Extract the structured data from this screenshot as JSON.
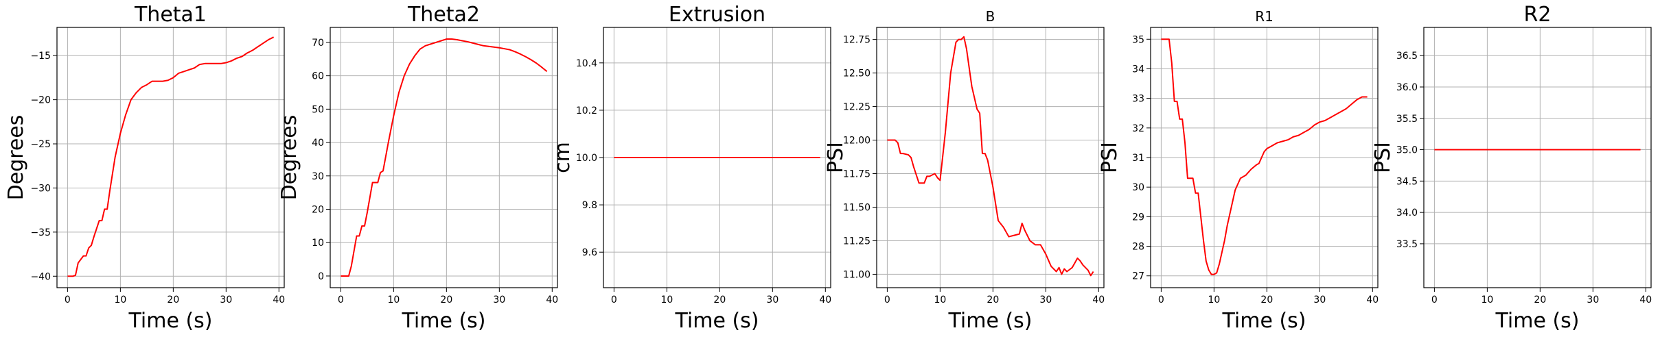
{
  "figure": {
    "background": "#ffffff",
    "line_color": "#ff0000",
    "grid_color": "#b0b0b0"
  },
  "chart_data": [
    {
      "type": "line",
      "title": "Theta1",
      "xlabel": "Time (s)",
      "ylabel": "Degrees",
      "xlim": [
        -2,
        41
      ],
      "ylim": [
        -41.3,
        -11.8
      ],
      "xticks": [
        0,
        10,
        20,
        30,
        40
      ],
      "xtick_labels": [
        "0",
        "10",
        "20",
        "30",
        "40"
      ],
      "yticks": [
        -40,
        -35,
        -30,
        -25,
        -20,
        -15
      ],
      "ytick_labels": [
        "−40",
        "−35",
        "−30",
        "−25",
        "−20",
        "−15"
      ],
      "grid": true,
      "series": [
        {
          "color": "#ff0000",
          "x": [
            0,
            1,
            1.5,
            2,
            3,
            3.5,
            4,
            4.5,
            5,
            6,
            6.5,
            7,
            7.5,
            8,
            9,
            10,
            11,
            12,
            13,
            14,
            15,
            16,
            17,
            18,
            19,
            20,
            21,
            22,
            23,
            24,
            25,
            26,
            27,
            28,
            29,
            30,
            31,
            32,
            33,
            34,
            35,
            36,
            37,
            38,
            39
          ],
          "y": [
            -40,
            -40,
            -39.9,
            -38.5,
            -37.7,
            -37.7,
            -36.8,
            -36.5,
            -35.5,
            -33.7,
            -33.7,
            -32.4,
            -32.4,
            -30.3,
            -26.5,
            -23.8,
            -21.7,
            -20,
            -19.2,
            -18.6,
            -18.3,
            -17.9,
            -17.9,
            -17.9,
            -17.8,
            -17.5,
            -17,
            -16.8,
            -16.6,
            -16.4,
            -16,
            -15.9,
            -15.9,
            -15.9,
            -15.9,
            -15.8,
            -15.6,
            -15.3,
            -15.1,
            -14.7,
            -14.4,
            -14,
            -13.6,
            -13.2,
            -12.9
          ]
        }
      ]
    },
    {
      "type": "line",
      "title": "Theta2",
      "xlabel": "Time (s)",
      "ylabel": "Degrees",
      "xlim": [
        -2,
        41
      ],
      "ylim": [
        -3.5,
        74.5
      ],
      "xticks": [
        0,
        10,
        20,
        30,
        40
      ],
      "xtick_labels": [
        "0",
        "10",
        "20",
        "30",
        "40"
      ],
      "yticks": [
        0,
        10,
        20,
        30,
        40,
        50,
        60,
        70
      ],
      "ytick_labels": [
        "0",
        "10",
        "20",
        "30",
        "40",
        "50",
        "60",
        "70"
      ],
      "grid": true,
      "series": [
        {
          "color": "#ff0000",
          "x": [
            0,
            1,
            1.5,
            2,
            3,
            3.5,
            4,
            4.5,
            5,
            6,
            6.5,
            7,
            7.5,
            8,
            9,
            10,
            11,
            12,
            13,
            14,
            15,
            16,
            17,
            18,
            19,
            20,
            21,
            22,
            23,
            24,
            25,
            26,
            27,
            28,
            29,
            30,
            31,
            32,
            33,
            34,
            35,
            36,
            37,
            38,
            39
          ],
          "y": [
            0,
            0,
            0,
            3,
            12,
            12,
            15,
            15,
            19,
            28,
            28,
            28,
            31,
            31.5,
            40,
            48,
            55,
            60,
            63.5,
            66,
            68,
            69,
            69.5,
            70,
            70.5,
            71,
            71,
            70.8,
            70.5,
            70.2,
            69.8,
            69.4,
            69,
            68.8,
            68.6,
            68.4,
            68.1,
            67.8,
            67.2,
            66.5,
            65.7,
            64.8,
            63.8,
            62.6,
            61.3
          ]
        }
      ]
    },
    {
      "type": "line",
      "title": "Extrusion",
      "xlabel": "Time (s)",
      "ylabel": "cm",
      "xlim": [
        -2,
        41
      ],
      "ylim": [
        9.45,
        10.55
      ],
      "xticks": [
        0,
        10,
        20,
        30,
        40
      ],
      "xtick_labels": [
        "0",
        "10",
        "20",
        "30",
        "40"
      ],
      "yticks": [
        9.6,
        9.8,
        10,
        10.2,
        10.4
      ],
      "ytick_labels": [
        "9.6",
        "9.8",
        "10.0",
        "10.2",
        "10.4"
      ],
      "grid": true,
      "series": [
        {
          "color": "#ff0000",
          "x": [
            0,
            39
          ],
          "y": [
            10,
            10
          ]
        }
      ]
    },
    {
      "type": "line",
      "title": "B",
      "xlabel": "Time (s)",
      "ylabel": "PSI",
      "xlim": [
        -2,
        41
      ],
      "ylim": [
        10.9,
        12.84
      ],
      "xticks": [
        0,
        10,
        20,
        30,
        40
      ],
      "xtick_labels": [
        "0",
        "10",
        "20",
        "30",
        "40"
      ],
      "yticks": [
        11,
        11.25,
        11.5,
        11.75,
        12,
        12.25,
        12.5,
        12.75
      ],
      "ytick_labels": [
        "11.00",
        "11.25",
        "11.50",
        "11.75",
        "12.00",
        "12.25",
        "12.50",
        "12.75"
      ],
      "grid": true,
      "series": [
        {
          "color": "#ff0000",
          "x": [
            0,
            1,
            1.5,
            2,
            2.5,
            3,
            4,
            4.5,
            5,
            6,
            6.5,
            7,
            7.5,
            8,
            9,
            9.5,
            10,
            11,
            12,
            13,
            13.5,
            14,
            14.5,
            15,
            16,
            17,
            17.5,
            18,
            18.5,
            19,
            20,
            21,
            22,
            23,
            24,
            25,
            25.5,
            26,
            27,
            28,
            29,
            30,
            31,
            32,
            32.5,
            33,
            33.5,
            34,
            35,
            36,
            36.5,
            37,
            38,
            38.5,
            39
          ],
          "y": [
            12,
            12,
            12,
            11.98,
            11.9,
            11.9,
            11.89,
            11.87,
            11.8,
            11.68,
            11.68,
            11.68,
            11.73,
            11.73,
            11.75,
            11.72,
            11.7,
            12.06,
            12.5,
            12.73,
            12.75,
            12.75,
            12.77,
            12.68,
            12.4,
            12.23,
            12.2,
            11.9,
            11.9,
            11.85,
            11.65,
            11.4,
            11.35,
            11.28,
            11.29,
            11.3,
            11.38,
            11.33,
            11.25,
            11.22,
            11.22,
            11.15,
            11.06,
            11.02,
            11.05,
            11,
            11.04,
            11.02,
            11.05,
            11.12,
            11.1,
            11.07,
            11.03,
            10.99,
            11.02
          ]
        }
      ]
    },
    {
      "type": "line",
      "title": "R1",
      "xlabel": "Time (s)",
      "ylabel": "PSI",
      "xlim": [
        -2,
        41
      ],
      "ylim": [
        26.6,
        35.4
      ],
      "xticks": [
        0,
        10,
        20,
        30,
        40
      ],
      "xtick_labels": [
        "0",
        "10",
        "20",
        "30",
        "40"
      ],
      "yticks": [
        27,
        28,
        29,
        30,
        31,
        32,
        33,
        34,
        35
      ],
      "ytick_labels": [
        "27",
        "28",
        "29",
        "30",
        "31",
        "32",
        "33",
        "34",
        "35"
      ],
      "grid": true,
      "series": [
        {
          "color": "#ff0000",
          "x": [
            0,
            1,
            1.5,
            2,
            2.5,
            3,
            3.5,
            4,
            4.5,
            5,
            5.5,
            6,
            6.5,
            7,
            7.5,
            8,
            8.5,
            9,
            9.5,
            10,
            10.5,
            11,
            11.5,
            12,
            12.5,
            13,
            13.5,
            14,
            15,
            16,
            17,
            18,
            18.5,
            19,
            19.5,
            20,
            21,
            22,
            23,
            24,
            25,
            26,
            27,
            28,
            29,
            30,
            31,
            32,
            33,
            34,
            35,
            36,
            37,
            38,
            39
          ],
          "y": [
            35,
            35,
            35,
            34.2,
            32.9,
            32.9,
            32.3,
            32.3,
            31.5,
            30.3,
            30.3,
            30.3,
            29.8,
            29.8,
            29,
            28.2,
            27.5,
            27.2,
            27.05,
            27.05,
            27.1,
            27.4,
            27.8,
            28.2,
            28.7,
            29.1,
            29.5,
            29.9,
            30.3,
            30.4,
            30.6,
            30.75,
            30.8,
            31,
            31.2,
            31.3,
            31.4,
            31.5,
            31.55,
            31.6,
            31.7,
            31.75,
            31.85,
            31.95,
            32.1,
            32.2,
            32.25,
            32.35,
            32.45,
            32.55,
            32.65,
            32.8,
            32.95,
            33.05,
            33.05
          ]
        }
      ]
    },
    {
      "type": "line",
      "title": "R2",
      "xlabel": "Time (s)",
      "ylabel": "PSI",
      "xlim": [
        -2,
        41
      ],
      "ylim": [
        32.8,
        36.95
      ],
      "xticks": [
        0,
        10,
        20,
        30,
        40
      ],
      "xtick_labels": [
        "0",
        "10",
        "20",
        "30",
        "40"
      ],
      "yticks": [
        33.5,
        34,
        34.5,
        35,
        35.5,
        36,
        36.5
      ],
      "ytick_labels": [
        "33.5",
        "34.0",
        "34.5",
        "35.0",
        "35.5",
        "36.0",
        "36.5"
      ],
      "grid": true,
      "series": [
        {
          "color": "#ff0000",
          "x": [
            0,
            39
          ],
          "y": [
            35,
            35
          ]
        }
      ]
    }
  ]
}
